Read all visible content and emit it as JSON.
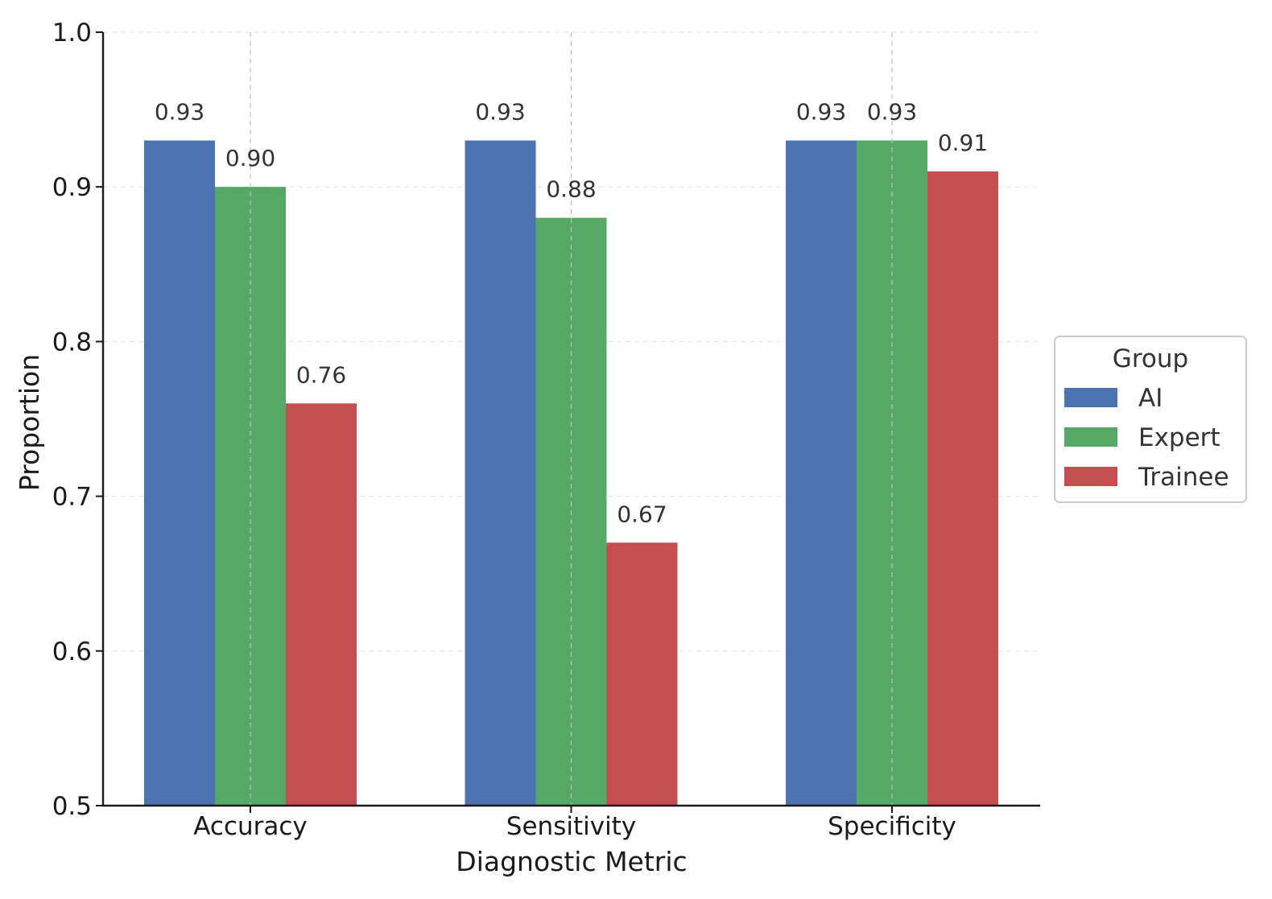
{
  "chart_data": {
    "type": "bar",
    "title": "",
    "xlabel": "Diagnostic Metric",
    "ylabel": "Proportion",
    "categories": [
      "Accuracy",
      "Sensitivity",
      "Specificity"
    ],
    "series": [
      {
        "name": "AI",
        "color": "#4c72b0",
        "values": [
          0.93,
          0.93,
          0.93
        ]
      },
      {
        "name": "Expert",
        "color": "#55a868",
        "values": [
          0.9,
          0.88,
          0.93
        ]
      },
      {
        "name": "Trainee",
        "color": "#c44e52",
        "values": [
          0.76,
          0.67,
          0.91
        ]
      }
    ],
    "data_labels": [
      [
        "0.93",
        "0.93",
        "0.93"
      ],
      [
        "0.90",
        "0.88",
        "0.93"
      ],
      [
        "0.76",
        "0.67",
        "0.91"
      ]
    ],
    "ylim": [
      0.5,
      1.0
    ],
    "yticks": [
      "0.5",
      "0.6",
      "0.7",
      "0.8",
      "0.9",
      "1.0"
    ],
    "grid": true,
    "legend": {
      "title": "Group",
      "placement": "right"
    }
  }
}
